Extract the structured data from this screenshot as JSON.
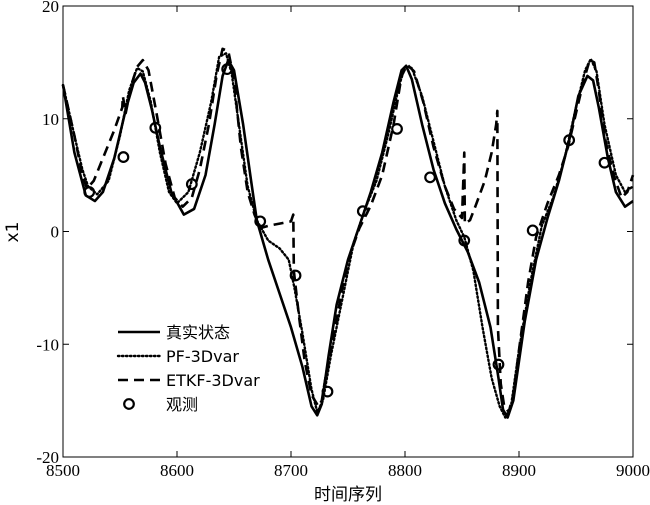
{
  "chart_data": {
    "type": "line",
    "title": "",
    "xlabel": "时间序列",
    "ylabel": "x1",
    "xlim": [
      8500,
      9000
    ],
    "ylim": [
      -20,
      20
    ],
    "xticks": [
      8500,
      8600,
      8700,
      8800,
      8900,
      9000
    ],
    "yticks": [
      -20,
      -10,
      0,
      10,
      20
    ],
    "grid": false,
    "legend_position": "lower-left",
    "series": [
      {
        "name": "真实状态",
        "style": "solid",
        "x": [
          8500,
          8510,
          8520,
          8528,
          8535,
          8545,
          8555,
          8562,
          8568,
          8572,
          8578,
          8585,
          8595,
          8606,
          8615,
          8625,
          8633,
          8640,
          8645,
          8650,
          8658,
          8665,
          8670,
          8680,
          8690,
          8700,
          8710,
          8718,
          8723,
          8727,
          8733,
          8740,
          8750,
          8760,
          8770,
          8780,
          8790,
          8797,
          8801,
          8806,
          8815,
          8825,
          8835,
          8845,
          8855,
          8865,
          8875,
          8882,
          8886,
          8890,
          8895,
          8905,
          8915,
          8925,
          8935,
          8945,
          8952,
          8960,
          8965,
          8970,
          8978,
          8985,
          8993,
          9000
        ],
        "y": [
          13,
          7,
          3.2,
          2.7,
          3.5,
          6.5,
          10.8,
          13.2,
          14.0,
          13.2,
          10.8,
          7.5,
          3.5,
          1.5,
          2.0,
          5.0,
          9.5,
          13.8,
          15.2,
          14.3,
          9.5,
          4.5,
          1.0,
          -2.5,
          -5.5,
          -8.5,
          -12,
          -15.5,
          -16.3,
          -15.3,
          -11,
          -6.5,
          -2.5,
          0.5,
          3.5,
          7.0,
          11.5,
          14.3,
          14.7,
          13.5,
          9.5,
          5.5,
          2.5,
          0.2,
          -1.8,
          -4.5,
          -8.5,
          -13,
          -15.8,
          -16.5,
          -15,
          -8,
          -2.5,
          1.2,
          4.5,
          8.5,
          12.0,
          13.8,
          13.4,
          11.0,
          6.5,
          3.5,
          2.2,
          2.7
        ]
      },
      {
        "name": "PF-3Dvar",
        "style": "dotted",
        "x": [
          8500,
          8510,
          8517,
          8522,
          8530,
          8540,
          8550,
          8558,
          8565,
          8570,
          8577,
          8585,
          8593,
          8600,
          8610,
          8620,
          8630,
          8637,
          8643,
          8648,
          8655,
          8662,
          8670,
          8680,
          8690,
          8698,
          8703,
          8710,
          8718,
          8723,
          8728,
          8735,
          8745,
          8755,
          8765,
          8775,
          8785,
          8795,
          8800,
          8806,
          8815,
          8825,
          8835,
          8845,
          8852,
          8860,
          8868,
          8876,
          8883,
          8888,
          8893,
          8900,
          8910,
          8920,
          8930,
          8940,
          8950,
          8958,
          8963,
          8968,
          8975,
          8985,
          8993,
          9000
        ],
        "y": [
          13,
          8.5,
          5.5,
          4.0,
          3.3,
          4.5,
          8.5,
          12.5,
          14.5,
          14.2,
          11.5,
          7.0,
          3.5,
          2.5,
          3.5,
          7.0,
          11.5,
          15.5,
          15.8,
          14.0,
          9.0,
          4.0,
          1.0,
          -0.8,
          -1.5,
          -2.5,
          -5,
          -9,
          -14,
          -16,
          -15,
          -11,
          -6,
          -1,
          2.0,
          4.5,
          8.5,
          13.0,
          14.6,
          14.5,
          12.0,
          8.0,
          4.0,
          1.0,
          -0.5,
          -3.5,
          -8.5,
          -13,
          -15.5,
          -16.5,
          -15.5,
          -10.5,
          -4.5,
          0.5,
          3.0,
          6.5,
          11.0,
          14.3,
          15.3,
          14.2,
          9.5,
          5.0,
          3.5,
          4.0
        ]
      },
      {
        "name": "ETKF-3Dvar",
        "style": "dashed",
        "x": [
          8500,
          8510,
          8517,
          8521,
          8527,
          8535,
          8545,
          8552,
          8552.5,
          8555,
          8560,
          8565,
          8570,
          8575,
          8582,
          8590,
          8598,
          8605,
          8613,
          8620,
          8628,
          8635,
          8640,
          8645,
          8650,
          8656,
          8662,
          8668,
          8673,
          8680,
          8690,
          8700,
          8702,
          8702.5,
          8707,
          8712,
          8718,
          8724,
          8727,
          8731,
          8738,
          8745,
          8752,
          8760,
          8770,
          8780,
          8790,
          8797,
          8802,
          8808,
          8816,
          8825,
          8835,
          8843,
          8850,
          8852,
          8852.5,
          8857,
          8862,
          8870,
          8876,
          8880,
          8881,
          8881.5,
          8884,
          8887,
          8891,
          8895,
          8900,
          8908,
          8915,
          8925,
          8935,
          8943,
          8950,
          8957,
          8962,
          8966,
          8970,
          8976,
          8983,
          8990,
          8995,
          9000
        ],
        "y": [
          13,
          8.5,
          5.0,
          3.8,
          4.5,
          6.5,
          9.0,
          11.0,
          12.0,
          10.5,
          13.0,
          14.6,
          15.2,
          14.3,
          10.5,
          6.0,
          3.0,
          2.2,
          3.0,
          5.5,
          9.5,
          14.0,
          16.2,
          16.0,
          13.5,
          7.5,
          3.5,
          1.5,
          0.3,
          0.5,
          0.7,
          0.9,
          1.5,
          -3.5,
          -7.5,
          -11.5,
          -14.5,
          -15.5,
          -15.0,
          -12.5,
          -9.0,
          -5.0,
          -2.0,
          0.3,
          2.3,
          5.0,
          9.5,
          13.8,
          14.8,
          14.2,
          11.5,
          7.5,
          4.0,
          2.0,
          1.2,
          7.0,
          0.7,
          1.0,
          2.3,
          4.5,
          7.0,
          9.5,
          10.7,
          -8.5,
          -13.5,
          -15.5,
          -16.0,
          -14.5,
          -10.5,
          -4.5,
          -0.5,
          2.5,
          5.0,
          7.5,
          10.5,
          13.5,
          15.2,
          15.0,
          12.5,
          8.0,
          5.0,
          3.0,
          3.5,
          5.0
        ]
      },
      {
        "name": "观测",
        "style": "circle-markers",
        "x": [
          8523,
          8553,
          8581,
          8613,
          8644,
          8673,
          8704,
          8732,
          8763,
          8793,
          8822,
          8852,
          8882,
          8912,
          8944,
          8975
        ],
        "y": [
          3.5,
          6.6,
          9.2,
          4.2,
          14.4,
          0.9,
          -3.9,
          -14.2,
          1.8,
          9.1,
          4.8,
          -0.8,
          -11.8,
          0.1,
          8.1,
          6.1
        ]
      }
    ]
  }
}
